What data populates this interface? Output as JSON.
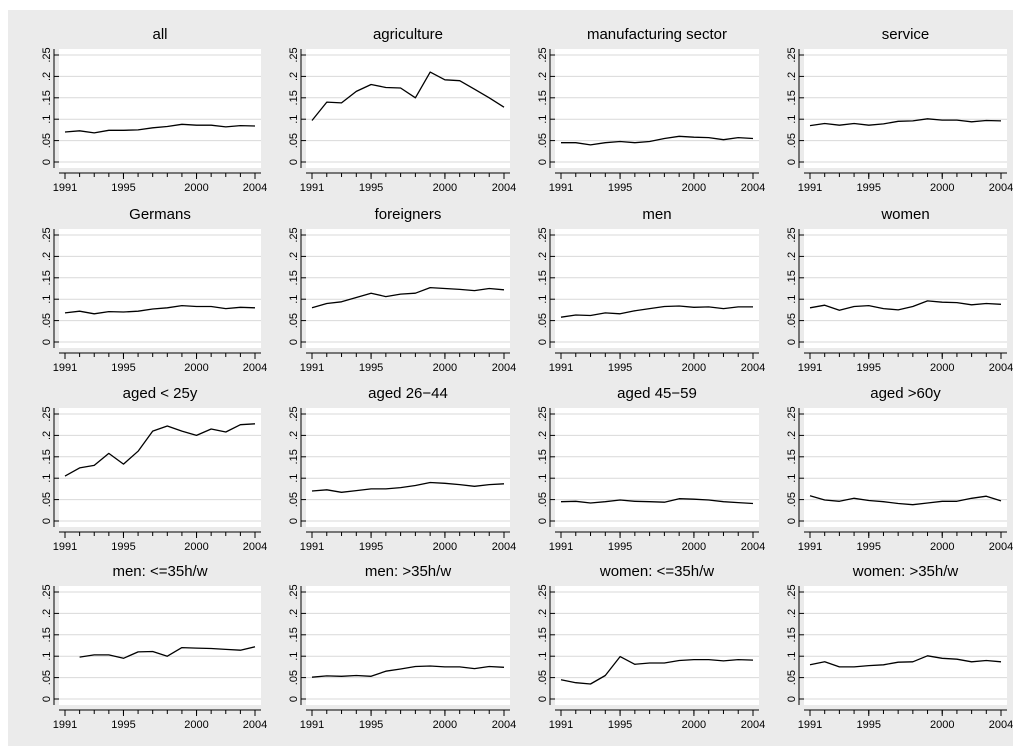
{
  "figure": {
    "background": "#ebebeb",
    "plot_background": "#ffffff",
    "grid_color": "#d9d9d9",
    "axis_color": "#000000",
    "line_color": "#000000"
  },
  "chart_data": [
    {
      "type": "line",
      "title": "all",
      "x": [
        1991,
        1992,
        1993,
        1994,
        1995,
        1996,
        1997,
        1998,
        1999,
        2000,
        2001,
        2002,
        2003,
        2004
      ],
      "y": [
        0.07,
        0.073,
        0.068,
        0.074,
        0.074,
        0.075,
        0.08,
        0.083,
        0.088,
        0.086,
        0.086,
        0.082,
        0.085,
        0.084
      ],
      "ylim": [
        0,
        0.25
      ],
      "yticks": [
        "0",
        ".05",
        ".1",
        ".15",
        ".2",
        ".25"
      ],
      "xticks": [
        "1991",
        "1995",
        "2000",
        "2004"
      ],
      "xlim": [
        1991,
        2004
      ],
      "grid": true
    },
    {
      "type": "line",
      "title": "agriculture",
      "x": [
        1991,
        1992,
        1993,
        1994,
        1995,
        1996,
        1997,
        1998,
        1999,
        2000,
        2001,
        2002,
        2003,
        2004
      ],
      "y": [
        0.097,
        0.14,
        0.138,
        0.165,
        0.181,
        0.174,
        0.173,
        0.15,
        0.21,
        0.192,
        0.19,
        0.17,
        0.15,
        0.128
      ],
      "ylim": [
        0,
        0.25
      ],
      "yticks": [
        "0",
        ".05",
        ".1",
        ".15",
        ".2",
        ".25"
      ],
      "xticks": [
        "1991",
        "1995",
        "2000",
        "2004"
      ],
      "xlim": [
        1991,
        2004
      ],
      "grid": true
    },
    {
      "type": "line",
      "title": "manufacturing sector",
      "x": [
        1991,
        1992,
        1993,
        1994,
        1995,
        1996,
        1997,
        1998,
        1999,
        2000,
        2001,
        2002,
        2003,
        2004
      ],
      "y": [
        0.045,
        0.045,
        0.04,
        0.045,
        0.048,
        0.045,
        0.048,
        0.055,
        0.06,
        0.058,
        0.057,
        0.052,
        0.057,
        0.055
      ],
      "ylim": [
        0,
        0.25
      ],
      "yticks": [
        "0",
        ".05",
        ".1",
        ".15",
        ".2",
        ".25"
      ],
      "xticks": [
        "1991",
        "1995",
        "2000",
        "2004"
      ],
      "xlim": [
        1991,
        2004
      ],
      "grid": true
    },
    {
      "type": "line",
      "title": "service",
      "x": [
        1991,
        1992,
        1993,
        1994,
        1995,
        1996,
        1997,
        1998,
        1999,
        2000,
        2001,
        2002,
        2003,
        2004
      ],
      "y": [
        0.085,
        0.09,
        0.086,
        0.09,
        0.086,
        0.089,
        0.095,
        0.096,
        0.101,
        0.098,
        0.098,
        0.094,
        0.097,
        0.096
      ],
      "ylim": [
        0,
        0.25
      ],
      "yticks": [
        "0",
        ".05",
        ".1",
        ".15",
        ".2",
        ".25"
      ],
      "xticks": [
        "1991",
        "1995",
        "2000",
        "2004"
      ],
      "xlim": [
        1991,
        2004
      ],
      "grid": true
    },
    {
      "type": "line",
      "title": "Germans",
      "x": [
        1991,
        1992,
        1993,
        1994,
        1995,
        1996,
        1997,
        1998,
        1999,
        2000,
        2001,
        2002,
        2003,
        2004
      ],
      "y": [
        0.068,
        0.072,
        0.066,
        0.071,
        0.07,
        0.072,
        0.077,
        0.08,
        0.085,
        0.083,
        0.083,
        0.078,
        0.081,
        0.08
      ],
      "ylim": [
        0,
        0.25
      ],
      "yticks": [
        "0",
        ".05",
        ".1",
        ".15",
        ".2",
        ".25"
      ],
      "xticks": [
        "1991",
        "1995",
        "2000",
        "2004"
      ],
      "xlim": [
        1991,
        2004
      ],
      "grid": true
    },
    {
      "type": "line",
      "title": "foreigners",
      "x": [
        1991,
        1992,
        1993,
        1994,
        1995,
        1996,
        1997,
        1998,
        1999,
        2000,
        2001,
        2002,
        2003,
        2004
      ],
      "y": [
        0.08,
        0.09,
        0.094,
        0.104,
        0.114,
        0.106,
        0.112,
        0.114,
        0.127,
        0.125,
        0.123,
        0.12,
        0.125,
        0.122
      ],
      "ylim": [
        0,
        0.25
      ],
      "yticks": [
        "0",
        ".05",
        ".1",
        ".15",
        ".2",
        ".25"
      ],
      "xticks": [
        "1991",
        "1995",
        "2000",
        "2004"
      ],
      "xlim": [
        1991,
        2004
      ],
      "grid": true
    },
    {
      "type": "line",
      "title": "men",
      "x": [
        1991,
        1992,
        1993,
        1994,
        1995,
        1996,
        1997,
        1998,
        1999,
        2000,
        2001,
        2002,
        2003,
        2004
      ],
      "y": [
        0.058,
        0.063,
        0.062,
        0.068,
        0.066,
        0.073,
        0.078,
        0.083,
        0.084,
        0.081,
        0.082,
        0.078,
        0.082,
        0.082
      ],
      "ylim": [
        0,
        0.25
      ],
      "yticks": [
        "0",
        ".05",
        ".1",
        ".15",
        ".2",
        ".25"
      ],
      "xticks": [
        "1991",
        "1995",
        "2000",
        "2004"
      ],
      "xlim": [
        1991,
        2004
      ],
      "grid": true
    },
    {
      "type": "line",
      "title": "women",
      "x": [
        1991,
        1992,
        1993,
        1994,
        1995,
        1996,
        1997,
        1998,
        1999,
        2000,
        2001,
        2002,
        2003,
        2004
      ],
      "y": [
        0.08,
        0.086,
        0.074,
        0.083,
        0.085,
        0.078,
        0.075,
        0.083,
        0.096,
        0.093,
        0.092,
        0.087,
        0.09,
        0.088
      ],
      "ylim": [
        0,
        0.25
      ],
      "yticks": [
        "0",
        ".05",
        ".1",
        ".15",
        ".2",
        ".25"
      ],
      "xticks": [
        "1991",
        "1995",
        "2000",
        "2004"
      ],
      "xlim": [
        1991,
        2004
      ],
      "grid": true
    },
    {
      "type": "line",
      "title": "aged < 25y",
      "x": [
        1991,
        1992,
        1993,
        1994,
        1995,
        1996,
        1997,
        1998,
        1999,
        2000,
        2001,
        2002,
        2003,
        2004
      ],
      "y": [
        0.105,
        0.124,
        0.13,
        0.158,
        0.133,
        0.163,
        0.21,
        0.222,
        0.21,
        0.2,
        0.215,
        0.208,
        0.225,
        0.227
      ],
      "ylim": [
        0,
        0.25
      ],
      "yticks": [
        "0",
        ".05",
        ".1",
        ".15",
        ".2",
        ".25"
      ],
      "xticks": [
        "1991",
        "1995",
        "2000",
        "2004"
      ],
      "xlim": [
        1991,
        2004
      ],
      "grid": true
    },
    {
      "type": "line",
      "title": "aged 26−44",
      "x": [
        1991,
        1992,
        1993,
        1994,
        1995,
        1996,
        1997,
        1998,
        1999,
        2000,
        2001,
        2002,
        2003,
        2004
      ],
      "y": [
        0.07,
        0.073,
        0.067,
        0.071,
        0.075,
        0.075,
        0.078,
        0.083,
        0.09,
        0.088,
        0.085,
        0.081,
        0.085,
        0.087
      ],
      "ylim": [
        0,
        0.25
      ],
      "yticks": [
        "0",
        ".05",
        ".1",
        ".15",
        ".2",
        ".25"
      ],
      "xticks": [
        "1991",
        "1995",
        "2000",
        "2004"
      ],
      "xlim": [
        1991,
        2004
      ],
      "grid": true
    },
    {
      "type": "line",
      "title": "aged 45−59",
      "x": [
        1991,
        1992,
        1993,
        1994,
        1995,
        1996,
        1997,
        1998,
        1999,
        2000,
        2001,
        2002,
        2003,
        2004
      ],
      "y": [
        0.045,
        0.046,
        0.042,
        0.045,
        0.049,
        0.046,
        0.045,
        0.044,
        0.052,
        0.051,
        0.049,
        0.045,
        0.043,
        0.041
      ],
      "ylim": [
        0,
        0.25
      ],
      "yticks": [
        "0",
        ".05",
        ".1",
        ".15",
        ".2",
        ".25"
      ],
      "xticks": [
        "1991",
        "1995",
        "2000",
        "2004"
      ],
      "xlim": [
        1991,
        2004
      ],
      "grid": true
    },
    {
      "type": "line",
      "title": "aged >60y",
      "x": [
        1991,
        1992,
        1993,
        1994,
        1995,
        1996,
        1997,
        1998,
        1999,
        2000,
        2001,
        2002,
        2003,
        2004
      ],
      "y": [
        0.059,
        0.049,
        0.046,
        0.053,
        0.048,
        0.045,
        0.041,
        0.038,
        0.042,
        0.046,
        0.046,
        0.053,
        0.058,
        0.047
      ],
      "ylim": [
        0,
        0.25
      ],
      "yticks": [
        "0",
        ".05",
        ".1",
        ".15",
        ".2",
        ".25"
      ],
      "xticks": [
        "1991",
        "1995",
        "2000",
        "2004"
      ],
      "xlim": [
        1991,
        2004
      ],
      "grid": true
    },
    {
      "type": "line",
      "title": "men: <=35h/w",
      "x": [
        1992,
        1993,
        1994,
        1995,
        1996,
        1997,
        1998,
        1999,
        2000,
        2001,
        2002,
        2003,
        2004
      ],
      "y": [
        0.098,
        0.103,
        0.103,
        0.095,
        0.11,
        0.111,
        0.1,
        0.12,
        0.119,
        0.118,
        0.116,
        0.114,
        0.122
      ],
      "ylim": [
        0,
        0.25
      ],
      "yticks": [
        "0",
        ".05",
        ".1",
        ".15",
        ".2",
        ".25"
      ],
      "xticks": [
        "1991",
        "1995",
        "2000",
        "2004"
      ],
      "xlim": [
        1991,
        2004
      ],
      "grid": true
    },
    {
      "type": "line",
      "title": "men: >35h/w",
      "x": [
        1991,
        1992,
        1993,
        1994,
        1995,
        1996,
        1997,
        1998,
        1999,
        2000,
        2001,
        2002,
        2003,
        2004
      ],
      "y": [
        0.051,
        0.054,
        0.053,
        0.055,
        0.053,
        0.065,
        0.07,
        0.076,
        0.077,
        0.075,
        0.075,
        0.071,
        0.076,
        0.074
      ],
      "ylim": [
        0,
        0.25
      ],
      "yticks": [
        "0",
        ".05",
        ".1",
        ".15",
        ".2",
        ".25"
      ],
      "xticks": [
        "1991",
        "1995",
        "2000",
        "2004"
      ],
      "xlim": [
        1991,
        2004
      ],
      "grid": true
    },
    {
      "type": "line",
      "title": "women: <=35h/w",
      "x": [
        1991,
        1992,
        1993,
        1994,
        1995,
        1996,
        1997,
        1998,
        1999,
        2000,
        2001,
        2002,
        2003,
        2004
      ],
      "y": [
        0.045,
        0.038,
        0.035,
        0.055,
        0.099,
        0.081,
        0.084,
        0.084,
        0.09,
        0.092,
        0.092,
        0.089,
        0.092,
        0.091
      ],
      "ylim": [
        0,
        0.25
      ],
      "yticks": [
        "0",
        ".05",
        ".1",
        ".15",
        ".2",
        ".25"
      ],
      "xticks": [
        "1991",
        "1995",
        "2000",
        "2004"
      ],
      "xlim": [
        1991,
        2004
      ],
      "grid": true
    },
    {
      "type": "line",
      "title": "women: >35h/w",
      "x": [
        1991,
        1992,
        1993,
        1994,
        1995,
        1996,
        1997,
        1998,
        1999,
        2000,
        2001,
        2002,
        2003,
        2004
      ],
      "y": [
        0.08,
        0.087,
        0.075,
        0.075,
        0.078,
        0.08,
        0.086,
        0.087,
        0.101,
        0.095,
        0.093,
        0.087,
        0.09,
        0.087
      ],
      "ylim": [
        0,
        0.25
      ],
      "yticks": [
        "0",
        ".05",
        ".1",
        ".15",
        ".2",
        ".25"
      ],
      "xticks": [
        "1991",
        "1995",
        "2000",
        "2004"
      ],
      "xlim": [
        1991,
        2004
      ],
      "grid": true
    }
  ]
}
